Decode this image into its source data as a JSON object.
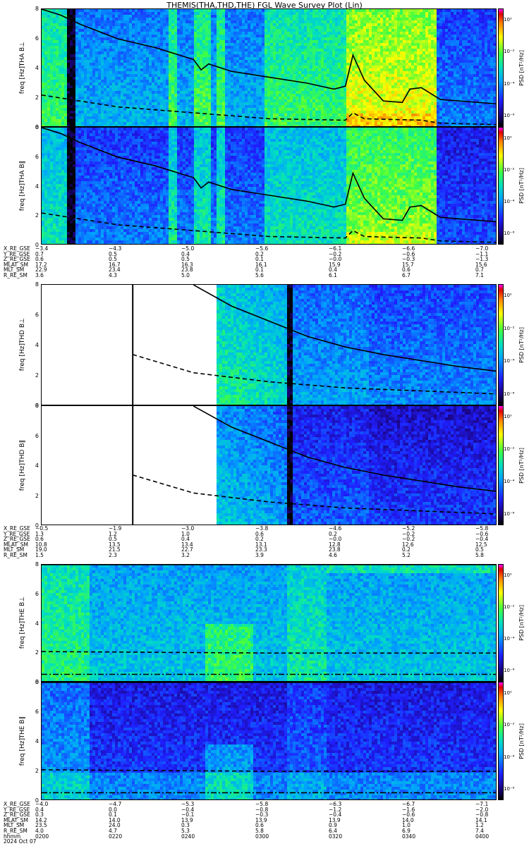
{
  "title": "THEMIS(THA,THD,THE) FGL Wave Survey Plot (Lin)",
  "panels": [
    {
      "probe": "THA",
      "comp": "B⊥",
      "ylabel1": "THA B⊥",
      "ylabel2": "freq [Hz]"
    },
    {
      "probe": "THA",
      "comp": "B∥",
      "ylabel1": "THA B∥",
      "ylabel2": "freq [Hz]"
    },
    {
      "probe": "THD",
      "comp": "B⊥",
      "ylabel1": "THD B⊥",
      "ylabel2": "freq [Hz]"
    },
    {
      "probe": "THD",
      "comp": "B∥",
      "ylabel1": "THD B∥",
      "ylabel2": "freq [Hz]"
    },
    {
      "probe": "THE",
      "comp": "B⊥",
      "ylabel1": "THE B⊥",
      "ylabel2": "freq [Hz]"
    },
    {
      "probe": "THE",
      "comp": "B∥",
      "ylabel1": "THE B∥",
      "ylabel2": "freq [Hz]"
    }
  ],
  "yticks": [
    "0",
    "2",
    "4",
    "6",
    "8"
  ],
  "colorbar": {
    "label": "PSD [nT²/Hz]",
    "ticks": [
      "10⁰",
      "10⁻²",
      "10⁻⁴",
      "10⁻⁶"
    ]
  },
  "ephem_labels": [
    "X_RE_GSE",
    "Y_RE_GSE",
    "Z_RE_GSE",
    "MLAT_SM",
    "MLT_SM",
    "R_RE_SM"
  ],
  "ephem_tha": [
    [
      "−3.4",
      "0.7",
      "0.6",
      "17.2",
      "22.9",
      "3.6"
    ],
    [
      "−4.3",
      "0.5",
      "0.5",
      "16.7",
      "23.4",
      "4.3"
    ],
    [
      "−5.0",
      "0.4",
      "0.5",
      "16.3",
      "23.8",
      "5.0"
    ],
    [
      "−5.6",
      "0.2",
      "0.1",
      "16.1",
      "0.1",
      "5.6"
    ],
    [
      "−6.1",
      "−0.2",
      "−0.0",
      "15.9",
      "0.4",
      "6.1"
    ],
    [
      "−6.6",
      "−0.6",
      "−0.3",
      "15.7",
      "0.6",
      "6.7"
    ],
    [
      "−7.0",
      "−1.1",
      "−1.3",
      "15.6",
      "0.7",
      "7.1"
    ]
  ],
  "ephem_thd": [
    [
      "−0.5",
      "1.3",
      "0.6",
      "10.8",
      "19.0",
      "1.5"
    ],
    [
      "−1.9",
      "1.2",
      "0.5",
      "13.5",
      "21.5",
      "2.3"
    ],
    [
      "−3.0",
      "1.0",
      "0.4",
      "13.4",
      "22.7",
      "3.2"
    ],
    [
      "−3.8",
      "0.6",
      "0.2",
      "13.1",
      "23.3",
      "3.9"
    ],
    [
      "−4.6",
      "0.2",
      "−0.0",
      "12.8",
      "23.8",
      "4.6"
    ],
    [
      "−5.2",
      "−0.2",
      "−0.2",
      "12.6",
      "0.2",
      "5.2"
    ],
    [
      "−5.8",
      "−0.6",
      "−0.4",
      "12.5",
      "0.5",
      "5.8"
    ]
  ],
  "ephem_the_labels": [
    "X_RE_GSE",
    "Y_RE_GSE",
    "Z_RE_GSE",
    "MLAT_SM",
    "MLT_SM",
    "R_RE_SM",
    "hhmm",
    "2024 Oct 07"
  ],
  "ephem_the": [
    [
      "−4.0",
      "0.4",
      "0.3",
      "14.2",
      "23.5",
      "4.0",
      "0200"
    ],
    [
      "−4.7",
      "0.0",
      "0.1",
      "14.0",
      "24.0",
      "4.7",
      "0220"
    ],
    [
      "−5.3",
      "−0.4",
      "−0.1",
      "13.9",
      "0.3",
      "5.3",
      "0240"
    ],
    [
      "−5.8",
      "−0.8",
      "−0.3",
      "13.9",
      "0.6",
      "5.8",
      "0300"
    ],
    [
      "−6.3",
      "−1.2",
      "−0.4",
      "13.9",
      "0.9",
      "6.4",
      "0320"
    ],
    [
      "−6.7",
      "−1.6",
      "−0.6",
      "14.0",
      "1.0",
      "6.9",
      "0340"
    ],
    [
      "−7.1",
      "−2.0",
      "−0.8",
      "14.1",
      "1.2",
      "7.4",
      "0400"
    ]
  ],
  "chart_data": {
    "type": "heatmap",
    "title": "THEMIS(THA,THD,THE) FGL Wave Survey Plot (Lin)",
    "xlabel": "hhmm",
    "x_ticks": [
      "0200",
      "0220",
      "0240",
      "0300",
      "0320",
      "0340",
      "0400"
    ],
    "xlim": [
      "0200",
      "0400"
    ],
    "ylabel": "freq [Hz]",
    "ylim": [
      0,
      8
    ],
    "colorbar_label": "PSD [nT²/Hz]",
    "colorbar_ticks": [
      "10⁰",
      "10⁻²",
      "10⁻⁴",
      "10⁻⁶"
    ],
    "log_color_scale": true,
    "date": "2024 Oct 07",
    "panels": [
      "THA B⊥",
      "THA B∥",
      "THD B⊥",
      "THD B∥",
      "THE B⊥",
      "THE B∥"
    ],
    "lines": {
      "tha_fce": {
        "x": [
          "0200",
          "0205",
          "0210",
          "0220",
          "0230",
          "0240",
          "0242",
          "0244",
          "0250",
          "0300",
          "0310",
          "0317",
          "0320",
          "0322",
          "0325",
          "0330",
          "0335",
          "0337",
          "0340",
          "0345",
          "0400"
        ],
        "y": [
          8.0,
          7.6,
          7.0,
          6.0,
          5.4,
          4.6,
          3.9,
          4.3,
          3.8,
          3.4,
          3.0,
          2.6,
          2.8,
          4.9,
          3.2,
          1.8,
          1.7,
          2.6,
          2.7,
          1.9,
          1.6
        ]
      },
      "tha_fcp": {
        "x": [
          "0200",
          "0220",
          "0240",
          "0300",
          "0320",
          "0322",
          "0325",
          "0340",
          "0345",
          "0400"
        ],
        "y": [
          2.2,
          1.4,
          1.0,
          0.6,
          0.5,
          1.0,
          0.6,
          0.5,
          0.3,
          0.2
        ]
      },
      "thd_fce": {
        "x": [
          "0240",
          "0250",
          "0300",
          "0310",
          "0320",
          "0330",
          "0340",
          "0350",
          "0400"
        ],
        "y": [
          8.0,
          6.6,
          5.6,
          4.6,
          3.9,
          3.4,
          3.0,
          2.6,
          2.3
        ]
      },
      "thd_fcp": {
        "x": [
          "0224",
          "0240",
          "0300",
          "0320",
          "0340",
          "0400"
        ],
        "y": [
          3.4,
          2.2,
          1.6,
          1.2,
          1.0,
          0.8
        ]
      },
      "the_fce": {
        "x": [
          "0200",
          "0400"
        ],
        "y": [
          8.0,
          8.0
        ]
      },
      "the_fcp": {
        "x": [
          "0200",
          "0300",
          "0400"
        ],
        "y": [
          2.1,
          2.0,
          2.0
        ]
      },
      "the_fhe": {
        "x": [
          "0200",
          "0400"
        ],
        "y": [
          0.55,
          0.55
        ]
      }
    }
  }
}
